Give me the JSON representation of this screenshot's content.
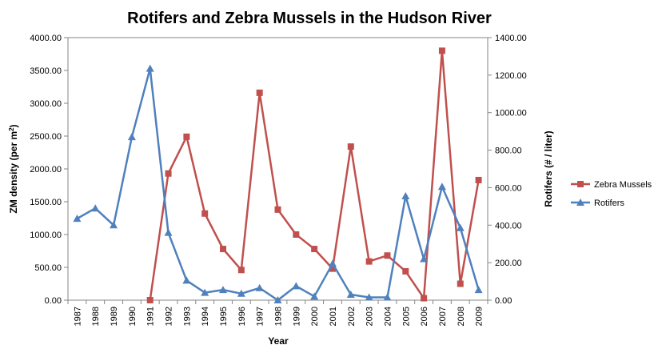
{
  "chart_data": {
    "type": "line",
    "title": "Rotifers and Zebra Mussels in the Hudson River",
    "xlabel": "Year",
    "ylabel_left_prefix": "ZM density (per m",
    "ylabel_left_sup": "2",
    "ylabel_left_suffix": ")",
    "ylabel_right": "Rotifers (# / liter)",
    "ylim_left": [
      0,
      4000
    ],
    "ylim_right": [
      0,
      1400
    ],
    "y_ticks_left": [
      "0.00",
      "500.00",
      "1000.00",
      "1500.00",
      "2000.00",
      "2500.00",
      "3000.00",
      "3500.00",
      "4000.00"
    ],
    "y_ticks_right": [
      "0.00",
      "200.00",
      "400.00",
      "600.00",
      "800.00",
      "1000.00",
      "1200.00",
      "1400.00"
    ],
    "categories": [
      "1987",
      "1988",
      "1989",
      "1990",
      "1991",
      "1992",
      "1993",
      "1994",
      "1995",
      "1996",
      "1997",
      "1998",
      "1999",
      "2000",
      "2001",
      "2002",
      "2003",
      "2004",
      "2005",
      "2006",
      "2007",
      "2008",
      "2009"
    ],
    "legend_position": "right",
    "series": [
      {
        "name": "Zebra Mussels",
        "axis": "left",
        "color": "#c0504d",
        "marker": "square",
        "values": [
          null,
          null,
          null,
          null,
          0,
          1930,
          2490,
          1320,
          780,
          460,
          3160,
          1380,
          1000,
          780,
          480,
          2340,
          590,
          680,
          440,
          30,
          3800,
          250,
          1830
        ]
      },
      {
        "name": "Rotifers",
        "axis": "right",
        "color": "#4f81bd",
        "marker": "triangle",
        "values": [
          435,
          490,
          400,
          870,
          1235,
          360,
          105,
          40,
          55,
          35,
          65,
          0,
          75,
          20,
          195,
          30,
          15,
          15,
          555,
          220,
          605,
          385,
          55
        ]
      }
    ]
  }
}
